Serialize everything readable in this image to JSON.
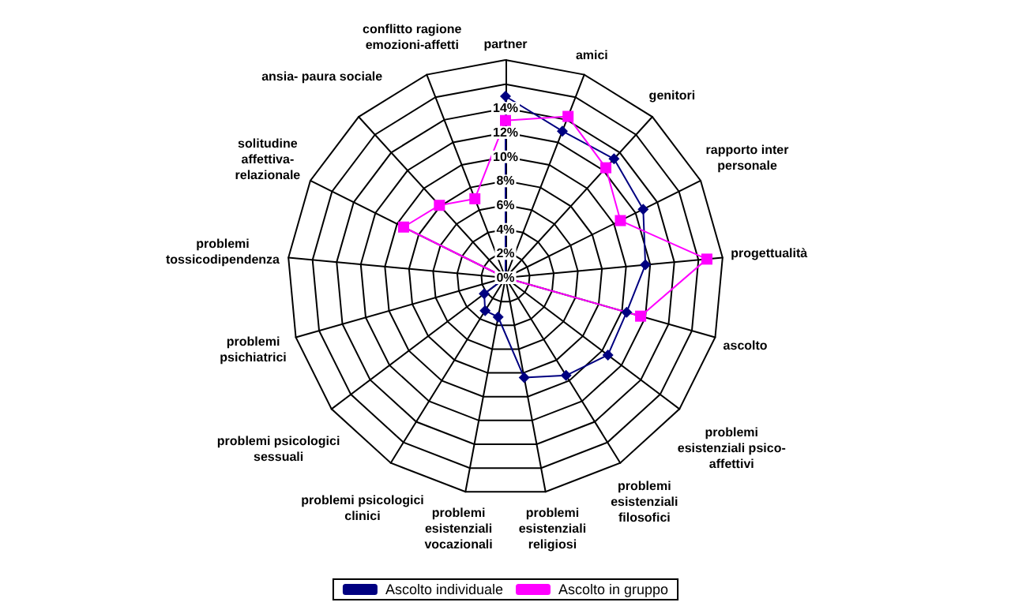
{
  "chart_data": {
    "type": "radar",
    "categories": [
      "partner",
      "amici",
      "genitori",
      "rapporto inter personale",
      "progettualità",
      "ascolto",
      "problemi esistenziali psico- affettivi",
      "problemi esistenziali filosofici",
      "problemi esistenziali religiosi",
      "problemi esistenziali vocazionali",
      "problemi psicologici clinici",
      "problemi psicologici sessuali",
      "problemi psichiatrici",
      "problemi tossicodipendenza",
      "solitudine affettiva- relazionale",
      "ansia- paura sociale",
      "conflitto ragione emozioni-affetti"
    ],
    "series": [
      {
        "name": "Ascolto individuale",
        "color": "#000080",
        "marker": "diamond",
        "values": [
          15,
          13,
          13.3,
          12.7,
          11.6,
          10.4,
          10.6,
          9.5,
          8.4,
          3.3,
          3.2,
          2.2,
          0,
          0,
          0,
          0,
          0
        ]
      },
      {
        "name": "Ascolto in gruppo",
        "color": "#ff00ff",
        "marker": "square",
        "values": [
          13,
          14.3,
          12.3,
          10.6,
          16.7,
          11.6,
          0,
          0,
          0,
          0,
          0,
          0,
          0,
          0,
          9.4,
          8.1,
          7
        ]
      }
    ],
    "ylim": [
      0,
      18
    ],
    "yticks": [
      {
        "value": 0,
        "label": "0%"
      },
      {
        "value": 2,
        "label": "2%"
      },
      {
        "value": 4,
        "label": "4%"
      },
      {
        "value": 6,
        "label": "6%"
      },
      {
        "value": 8,
        "label": "8%"
      },
      {
        "value": 10,
        "label": "10%"
      },
      {
        "value": 12,
        "label": "12%"
      },
      {
        "value": 14,
        "label": "14%"
      }
    ],
    "grid": true,
    "legend": "bottom"
  }
}
